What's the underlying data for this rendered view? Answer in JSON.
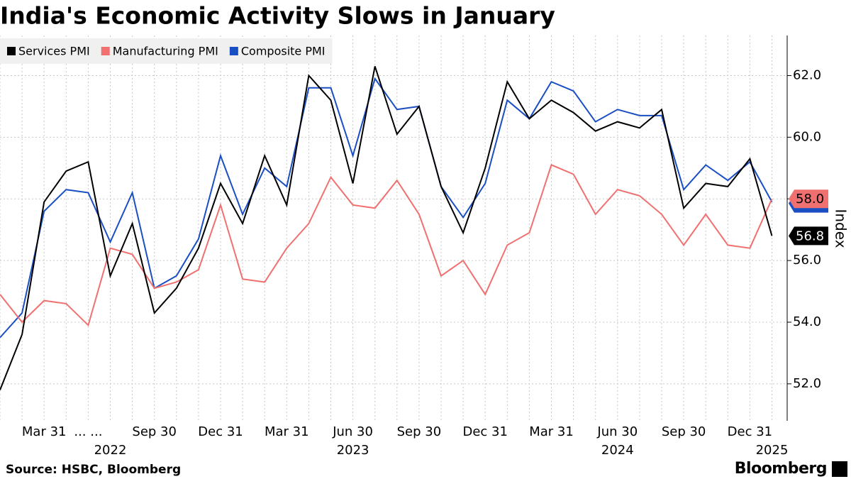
{
  "chart_data": {
    "type": "line",
    "title": "India's Economic Activity Slows in January",
    "source": "Source: HSBC, Bloomberg",
    "brand": "Bloomberg",
    "y_label": "Index",
    "categories": [
      null,
      null,
      "Mar 31",
      null,
      "... ...",
      null,
      null,
      "Sep 30",
      null,
      null,
      "Dec 31",
      null,
      null,
      "Mar 31",
      null,
      null,
      "Jun 30",
      null,
      null,
      "Sep 30",
      null,
      null,
      "Dec 31",
      null,
      null,
      "Mar 31",
      null,
      null,
      "Jun 30",
      null,
      null,
      "Sep 30",
      null,
      null,
      "Dec 31",
      null
    ],
    "year_labels": [
      null,
      null,
      null,
      null,
      null,
      "2022",
      null,
      null,
      null,
      null,
      null,
      null,
      null,
      null,
      null,
      null,
      "2023",
      null,
      null,
      null,
      null,
      null,
      null,
      null,
      null,
      null,
      null,
      null,
      "2024",
      null,
      null,
      null,
      null,
      null,
      null,
      "2025"
    ],
    "series": [
      {
        "name": "Services PMI",
        "color": "#000000",
        "label_text": "#ffffff",
        "values": [
          51.8,
          53.6,
          57.9,
          58.9,
          59.2,
          55.5,
          57.2,
          54.3,
          55.1,
          56.4,
          58.5,
          57.2,
          59.4,
          57.8,
          62.0,
          61.2,
          58.5,
          62.3,
          60.1,
          61.0,
          58.4,
          56.9,
          59.0,
          61.8,
          60.6,
          61.2,
          60.8,
          60.2,
          60.5,
          60.3,
          60.9,
          57.7,
          58.5,
          58.4,
          59.3,
          56.8
        ]
      },
      {
        "name": "Manufacturing PMI",
        "color": "#f07070",
        "label_text": "#000000",
        "values": [
          54.9,
          54.0,
          54.7,
          54.6,
          53.9,
          56.4,
          56.2,
          55.1,
          55.3,
          55.7,
          57.8,
          55.4,
          55.3,
          56.4,
          57.2,
          58.7,
          57.8,
          57.7,
          58.6,
          57.5,
          55.5,
          56.0,
          54.9,
          56.5,
          56.9,
          59.1,
          58.8,
          57.5,
          58.3,
          58.1,
          57.5,
          56.5,
          57.5,
          56.5,
          56.4,
          58.0
        ],
        "value_labels": [
          null,
          null,
          null,
          null,
          null,
          null,
          null,
          null,
          null,
          null,
          null,
          null,
          null,
          null,
          null,
          null,
          null,
          null,
          null,
          null,
          null,
          null,
          null,
          null,
          null,
          null,
          null,
          null,
          null,
          null,
          null,
          null,
          null,
          null,
          null,
          "58.0"
        ]
      },
      {
        "name": "Composite PMI",
        "color": "#1a4fc4",
        "values": [
          53.5,
          54.3,
          57.6,
          58.3,
          58.2,
          56.6,
          58.2,
          55.1,
          55.5,
          56.7,
          59.4,
          57.5,
          59.0,
          58.4,
          61.6,
          61.6,
          59.4,
          61.9,
          60.9,
          61.0,
          58.4,
          57.4,
          58.5,
          61.2,
          60.6,
          61.8,
          61.5,
          60.5,
          60.9,
          60.7,
          60.7,
          58.3,
          59.1,
          58.6,
          59.2,
          57.9
        ]
      }
    ],
    "ylim": [
      50.8,
      63.3
    ],
    "yticks": [
      {
        "value": 52,
        "label": "52.0"
      },
      {
        "value": 54,
        "label": "54.0"
      },
      {
        "value": 56,
        "label": "56.0"
      },
      {
        "value": 58,
        "label": "58.0"
      },
      {
        "value": 60,
        "label": "60.0"
      },
      {
        "value": 62,
        "label": "62.0"
      }
    ],
    "grid": true,
    "legend": "top-left"
  }
}
